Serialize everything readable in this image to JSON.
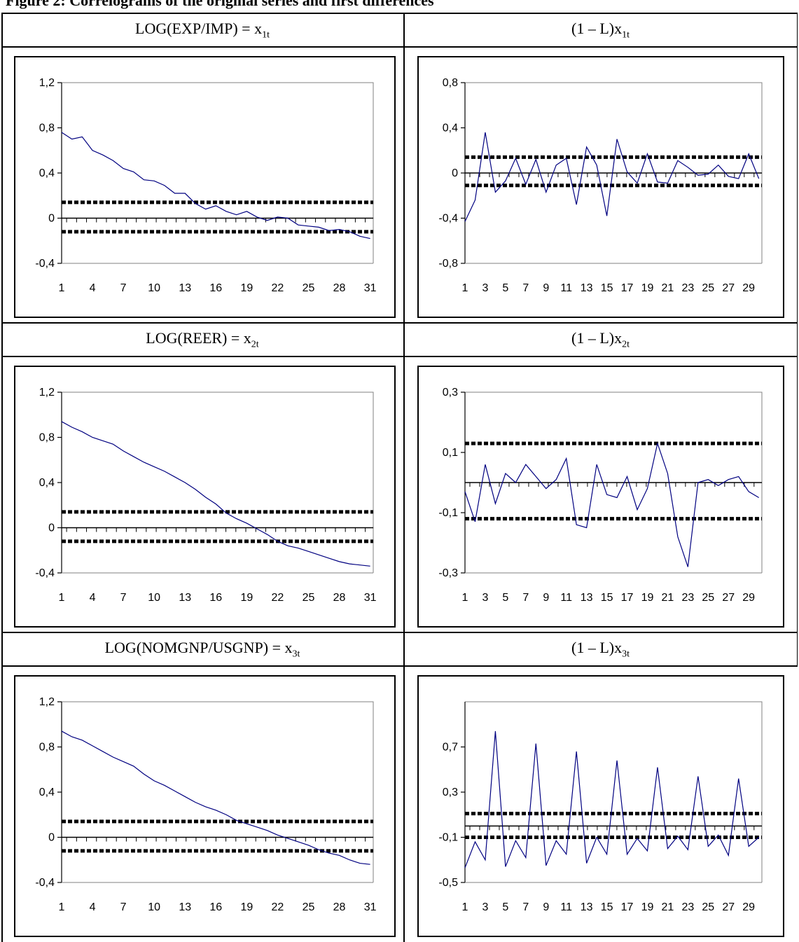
{
  "figure_title": "Figure 2: Correlograms of the original series and first differences",
  "panels": [
    {
      "prefix": "LOG(EXP/IMP) = x",
      "sub": "1t"
    },
    {
      "prefix": "(1 – L)x",
      "sub": "1t"
    },
    {
      "prefix": "LOG(REER) = x",
      "sub": "2t"
    },
    {
      "prefix": "(1 – L)x",
      "sub": "2t"
    },
    {
      "prefix": "LOG(NOMGNP/USGNP) = x",
      "sub": "3t"
    },
    {
      "prefix": "(1 – L)x",
      "sub": "3t"
    }
  ],
  "colors": {
    "series": "#000080",
    "bands": "#000000",
    "axes": "#000000",
    "plot_border": "#808080"
  },
  "chart_data": [
    {
      "type": "line",
      "x": [
        1,
        2,
        3,
        4,
        5,
        6,
        7,
        8,
        9,
        10,
        11,
        12,
        13,
        14,
        15,
        16,
        17,
        18,
        19,
        20,
        21,
        22,
        23,
        24,
        25,
        26,
        27,
        28,
        29,
        30,
        31
      ],
      "series": [
        {
          "values": [
            0.76,
            0.7,
            0.72,
            0.6,
            0.56,
            0.51,
            0.44,
            0.41,
            0.34,
            0.33,
            0.29,
            0.22,
            0.22,
            0.13,
            0.08,
            0.11,
            0.06,
            0.03,
            0.06,
            0.01,
            -0.02,
            0.01,
            0.0,
            -0.06,
            -0.07,
            -0.08,
            -0.11,
            -0.1,
            -0.12,
            -0.16,
            -0.18
          ]
        }
      ],
      "bands": [
        0.14,
        -0.12
      ],
      "ylim": [
        -0.4,
        1.2
      ],
      "yticks": [
        -0.4,
        0,
        0.4,
        0.8,
        1.2
      ],
      "ytick_labels": [
        "-0,4",
        "0",
        "0,4",
        "0,8",
        "1,2"
      ],
      "xticks": [
        1,
        4,
        7,
        10,
        13,
        16,
        19,
        22,
        25,
        28,
        31
      ]
    },
    {
      "type": "line",
      "x": [
        1,
        2,
        3,
        4,
        5,
        6,
        7,
        8,
        9,
        10,
        11,
        12,
        13,
        14,
        15,
        16,
        17,
        18,
        19,
        20,
        21,
        22,
        23,
        24,
        25,
        26,
        27,
        28,
        29,
        30
      ],
      "series": [
        {
          "values": [
            -0.43,
            -0.24,
            0.36,
            -0.17,
            -0.07,
            0.13,
            -0.1,
            0.12,
            -0.17,
            0.07,
            0.13,
            -0.28,
            0.23,
            0.07,
            -0.38,
            0.3,
            0.01,
            -0.09,
            0.17,
            -0.08,
            -0.09,
            0.11,
            0.05,
            -0.02,
            -0.01,
            0.07,
            -0.03,
            -0.05,
            0.17,
            -0.05
          ]
        }
      ],
      "bands": [
        0.14,
        -0.11
      ],
      "ylim": [
        -0.8,
        0.8
      ],
      "yticks": [
        -0.8,
        -0.4,
        0,
        0.4,
        0.8
      ],
      "ytick_labels": [
        "-0,8",
        "-0,4",
        "0",
        "0,4",
        "0,8"
      ],
      "xticks": [
        1,
        3,
        5,
        7,
        9,
        11,
        13,
        15,
        17,
        19,
        21,
        23,
        25,
        27,
        29
      ]
    },
    {
      "type": "line",
      "x": [
        1,
        2,
        3,
        4,
        5,
        6,
        7,
        8,
        9,
        10,
        11,
        12,
        13,
        14,
        15,
        16,
        17,
        18,
        19,
        20,
        21,
        22,
        23,
        24,
        25,
        26,
        27,
        28,
        29,
        30,
        31
      ],
      "series": [
        {
          "values": [
            0.94,
            0.89,
            0.85,
            0.8,
            0.77,
            0.74,
            0.68,
            0.63,
            0.58,
            0.54,
            0.5,
            0.45,
            0.4,
            0.34,
            0.27,
            0.21,
            0.13,
            0.08,
            0.04,
            -0.01,
            -0.06,
            -0.12,
            -0.16,
            -0.18,
            -0.21,
            -0.24,
            -0.27,
            -0.3,
            -0.32,
            -0.33,
            -0.34
          ]
        }
      ],
      "bands": [
        0.14,
        -0.12
      ],
      "ylim": [
        -0.4,
        1.2
      ],
      "yticks": [
        -0.4,
        0,
        0.4,
        0.8,
        1.2
      ],
      "ytick_labels": [
        "-0,4",
        "0",
        "0,4",
        "0,8",
        "1,2"
      ],
      "xticks": [
        1,
        4,
        7,
        10,
        13,
        16,
        19,
        22,
        25,
        28,
        31
      ]
    },
    {
      "type": "line",
      "x": [
        1,
        2,
        3,
        4,
        5,
        6,
        7,
        8,
        9,
        10,
        11,
        12,
        13,
        14,
        15,
        16,
        17,
        18,
        19,
        20,
        21,
        22,
        23,
        24,
        25,
        26,
        27,
        28,
        29,
        30
      ],
      "series": [
        {
          "values": [
            -0.03,
            -0.13,
            0.06,
            -0.07,
            0.03,
            0.0,
            0.06,
            0.02,
            -0.02,
            0.01,
            0.08,
            -0.14,
            -0.15,
            0.06,
            -0.04,
            -0.05,
            0.02,
            -0.09,
            -0.02,
            0.13,
            0.03,
            -0.18,
            -0.28,
            0.0,
            0.01,
            -0.01,
            0.01,
            0.02,
            -0.03,
            -0.05
          ]
        }
      ],
      "bands": [
        0.13,
        -0.12
      ],
      "ylim": [
        -0.3,
        0.3
      ],
      "yticks": [
        -0.3,
        -0.1,
        0.1,
        0.3
      ],
      "ytick_labels": [
        "-0,3",
        "-0,1",
        "0,1",
        "0,3"
      ],
      "xticks": [
        1,
        3,
        5,
        7,
        9,
        11,
        13,
        15,
        17,
        19,
        21,
        23,
        25,
        27,
        29
      ]
    },
    {
      "type": "line",
      "x": [
        1,
        2,
        3,
        4,
        5,
        6,
        7,
        8,
        9,
        10,
        11,
        12,
        13,
        14,
        15,
        16,
        17,
        18,
        19,
        20,
        21,
        22,
        23,
        24,
        25,
        26,
        27,
        28,
        29,
        30,
        31
      ],
      "series": [
        {
          "values": [
            0.94,
            0.89,
            0.86,
            0.81,
            0.76,
            0.71,
            0.67,
            0.63,
            0.56,
            0.5,
            0.46,
            0.41,
            0.36,
            0.31,
            0.27,
            0.24,
            0.2,
            0.15,
            0.12,
            0.09,
            0.06,
            0.02,
            -0.01,
            -0.04,
            -0.07,
            -0.11,
            -0.14,
            -0.16,
            -0.2,
            -0.23,
            -0.24
          ]
        }
      ],
      "bands": [
        0.14,
        -0.12
      ],
      "ylim": [
        -0.4,
        1.2
      ],
      "yticks": [
        -0.4,
        0,
        0.4,
        0.8,
        1.2
      ],
      "ytick_labels": [
        "-0,4",
        "0",
        "0,4",
        "0,8",
        "1,2"
      ],
      "xticks": [
        1,
        4,
        7,
        10,
        13,
        16,
        19,
        22,
        25,
        28,
        31
      ]
    },
    {
      "type": "line",
      "x": [
        1,
        2,
        3,
        4,
        5,
        6,
        7,
        8,
        9,
        10,
        11,
        12,
        13,
        14,
        15,
        16,
        17,
        18,
        19,
        20,
        21,
        22,
        23,
        24,
        25,
        26,
        27,
        28,
        29,
        30
      ],
      "series": [
        {
          "values": [
            -0.37,
            -0.14,
            -0.3,
            0.84,
            -0.36,
            -0.13,
            -0.28,
            0.73,
            -0.35,
            -0.13,
            -0.25,
            0.66,
            -0.33,
            -0.1,
            -0.25,
            0.58,
            -0.25,
            -0.11,
            -0.22,
            0.52,
            -0.2,
            -0.09,
            -0.21,
            0.44,
            -0.18,
            -0.08,
            -0.26,
            0.42,
            -0.18,
            -0.1
          ]
        }
      ],
      "bands": [
        0.11,
        -0.1
      ],
      "ylim": [
        -0.5,
        1.1
      ],
      "yticks": [
        -0.5,
        -0.1,
        0.3,
        0.7
      ],
      "ytick_labels": [
        "-0,5",
        "-0,1",
        "0,3",
        "0,7"
      ],
      "xticks": [
        1,
        3,
        5,
        7,
        9,
        11,
        13,
        15,
        17,
        19,
        21,
        23,
        25,
        27,
        29
      ]
    }
  ]
}
